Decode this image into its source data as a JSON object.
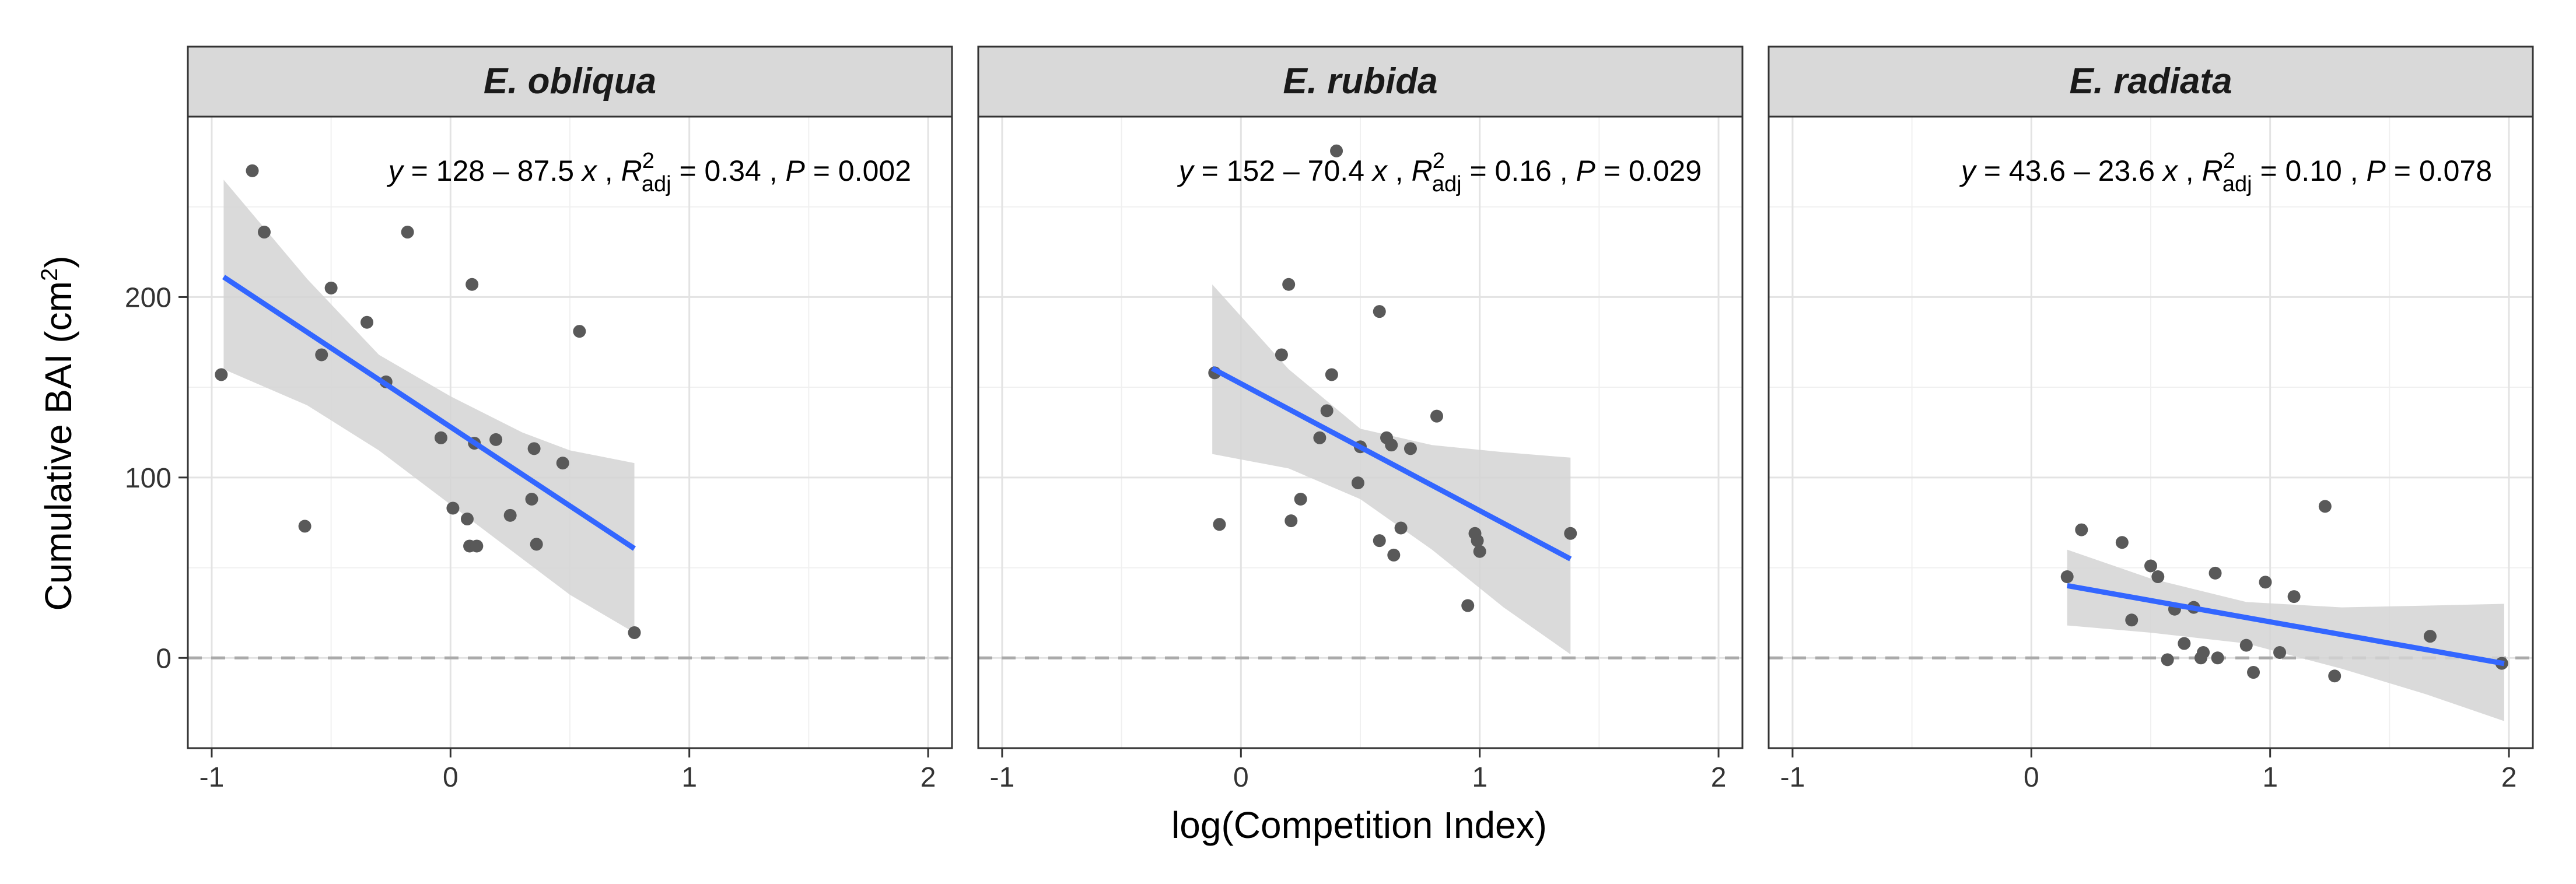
{
  "chart_data": {
    "type": "scatter",
    "layout": "faceted",
    "xlabel": "log(Competition Index)",
    "ylabel": "Cumulative BAI (cm",
    "ylabel_superscript": "2",
    "ylabel_close": ")",
    "xlim": [
      -1.1,
      2.1
    ],
    "ylim": [
      -50,
      300
    ],
    "xticks": [
      -1,
      0,
      1,
      2
    ],
    "xtick_labels": [
      "-1",
      "0",
      "1",
      "2"
    ],
    "yticks": [
      0,
      100,
      200
    ],
    "ytick_labels": [
      "0",
      "100",
      "200"
    ],
    "reference_line_y": 0,
    "colors": {
      "points": "#595959",
      "fit_line": "#3366ff",
      "ribbon": "#d3d3d3",
      "strip_bg": "#d9d9d9",
      "ref_line": "#aaaaaa"
    },
    "facets": [
      {
        "label": "E. obliqua",
        "equation": {
          "text_main": "y = 128 – 87.5 x ,",
          "r2_label": "R",
          "r2_sup": "2",
          "r2_sub": "adj",
          "r2_value": "= 0.34 ,",
          "p_label": "P",
          "p_value": "= 0.002"
        },
        "intercept": 128,
        "slope": -87.5,
        "fit_x_range": [
          -0.95,
          0.77
        ],
        "ribbon": {
          "x": [
            -0.95,
            -0.6,
            -0.3,
            0.0,
            0.3,
            0.5,
            0.77
          ],
          "lower": [
            160,
            140,
            115,
            85,
            55,
            35,
            14
          ],
          "upper": [
            265,
            210,
            168,
            145,
            125,
            115,
            108
          ]
        },
        "points": [
          {
            "x": -0.96,
            "y": 157
          },
          {
            "x": -0.83,
            "y": 270
          },
          {
            "x": -0.78,
            "y": 236
          },
          {
            "x": -0.61,
            "y": 73
          },
          {
            "x": -0.54,
            "y": 168
          },
          {
            "x": -0.5,
            "y": 205
          },
          {
            "x": -0.35,
            "y": 186
          },
          {
            "x": -0.27,
            "y": 153
          },
          {
            "x": -0.18,
            "y": 236
          },
          {
            "x": -0.04,
            "y": 122
          },
          {
            "x": 0.01,
            "y": 83
          },
          {
            "x": 0.07,
            "y": 77
          },
          {
            "x": 0.08,
            "y": 62
          },
          {
            "x": 0.09,
            "y": 207
          },
          {
            "x": 0.1,
            "y": 119
          },
          {
            "x": 0.11,
            "y": 62
          },
          {
            "x": 0.19,
            "y": 121
          },
          {
            "x": 0.25,
            "y": 79
          },
          {
            "x": 0.34,
            "y": 88
          },
          {
            "x": 0.35,
            "y": 116
          },
          {
            "x": 0.36,
            "y": 63
          },
          {
            "x": 0.47,
            "y": 108
          },
          {
            "x": 0.54,
            "y": 181
          },
          {
            "x": 0.77,
            "y": 14
          }
        ]
      },
      {
        "label": "E. rubida",
        "equation": {
          "text_main": "y = 152 – 70.4 x ,",
          "r2_label": "R",
          "r2_sup": "2",
          "r2_sub": "adj",
          "r2_value": "= 0.16 ,",
          "p_label": "P",
          "p_value": "= 0.029"
        },
        "intercept": 152,
        "slope": -70.4,
        "fit_x_range": [
          -0.12,
          1.38
        ],
        "ribbon": {
          "x": [
            -0.12,
            0.2,
            0.5,
            0.8,
            1.1,
            1.38
          ],
          "lower": [
            113,
            105,
            88,
            60,
            28,
            2
          ],
          "upper": [
            207,
            160,
            127,
            118,
            114,
            111
          ]
        },
        "points": [
          {
            "x": -0.11,
            "y": 158
          },
          {
            "x": -0.09,
            "y": 74
          },
          {
            "x": 0.17,
            "y": 168
          },
          {
            "x": 0.2,
            "y": 207
          },
          {
            "x": 0.21,
            "y": 76
          },
          {
            "x": 0.25,
            "y": 88
          },
          {
            "x": 0.33,
            "y": 122
          },
          {
            "x": 0.36,
            "y": 137
          },
          {
            "x": 0.38,
            "y": 157
          },
          {
            "x": 0.4,
            "y": 281
          },
          {
            "x": 0.49,
            "y": 97
          },
          {
            "x": 0.5,
            "y": 117
          },
          {
            "x": 0.58,
            "y": 192
          },
          {
            "x": 0.58,
            "y": 65
          },
          {
            "x": 0.61,
            "y": 122
          },
          {
            "x": 0.63,
            "y": 118
          },
          {
            "x": 0.64,
            "y": 57
          },
          {
            "x": 0.67,
            "y": 72
          },
          {
            "x": 0.71,
            "y": 116
          },
          {
            "x": 0.82,
            "y": 134
          },
          {
            "x": 0.95,
            "y": 29
          },
          {
            "x": 0.98,
            "y": 69
          },
          {
            "x": 0.99,
            "y": 65
          },
          {
            "x": 1.0,
            "y": 59
          },
          {
            "x": 1.38,
            "y": 69
          }
        ]
      },
      {
        "label": "E. radiata",
        "equation": {
          "text_main": "y = 43.6 – 23.6 x ,",
          "r2_label": "R",
          "r2_sup": "2",
          "r2_sub": "adj",
          "r2_value": "= 0.10 ,",
          "p_label": "P",
          "p_value": "= 0.078"
        },
        "intercept": 43.6,
        "slope": -23.6,
        "fit_x_range": [
          0.15,
          1.98
        ],
        "ribbon": {
          "x": [
            0.15,
            0.5,
            0.9,
            1.3,
            1.65,
            1.98
          ],
          "lower": [
            18,
            14,
            8,
            -6,
            -20,
            -35
          ],
          "upper": [
            60,
            44,
            31,
            28,
            29,
            30
          ]
        },
        "points": [
          {
            "x": 0.15,
            "y": 45
          },
          {
            "x": 0.21,
            "y": 71
          },
          {
            "x": 0.38,
            "y": 64
          },
          {
            "x": 0.42,
            "y": 21
          },
          {
            "x": 0.5,
            "y": 51
          },
          {
            "x": 0.53,
            "y": 45
          },
          {
            "x": 0.57,
            "y": -1
          },
          {
            "x": 0.6,
            "y": 27
          },
          {
            "x": 0.64,
            "y": 8
          },
          {
            "x": 0.68,
            "y": 28
          },
          {
            "x": 0.71,
            "y": 0
          },
          {
            "x": 0.72,
            "y": 3
          },
          {
            "x": 0.77,
            "y": 47
          },
          {
            "x": 0.78,
            "y": 0
          },
          {
            "x": 0.9,
            "y": 7
          },
          {
            "x": 0.93,
            "y": -8
          },
          {
            "x": 0.98,
            "y": 42
          },
          {
            "x": 1.04,
            "y": 3
          },
          {
            "x": 1.1,
            "y": 34
          },
          {
            "x": 1.23,
            "y": 84
          },
          {
            "x": 1.27,
            "y": -10
          },
          {
            "x": 1.67,
            "y": 12
          },
          {
            "x": 1.97,
            "y": -3
          }
        ]
      }
    ]
  }
}
